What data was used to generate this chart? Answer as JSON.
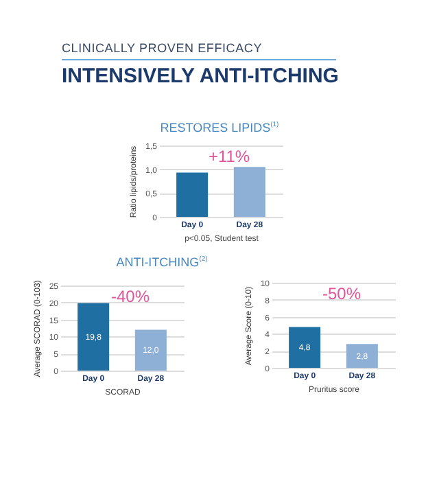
{
  "chart_data": [
    {
      "type": "other",
      "title": "INTENSIVELY ANTI-ITCHING",
      "subtitle": "CLINICALLY PROVEN EFFICACY"
    },
    {
      "type": "bar",
      "title": "RESTORES LIPIDS$^{(1)}$",
      "categories": [
        "Day 0",
        "Day 28"
      ],
      "values": [
        0.93,
        1.05
      ],
      "colors": [
        "#1f6fa3",
        "#8eb0d6"
      ],
      "ylabel": "Ratio lipids/proteins",
      "xlabel": "p<0.05, Student test",
      "ylim": [
        0,
        1.5
      ],
      "yticks": [
        0,
        {
          "value": 0.5,
          "label": "0,5"
        },
        {
          "value": 1,
          "label": "1,0"
        },
        {
          "value": 1.5,
          "label": "1,5"
        }
      ],
      "grid": "y",
      "annotations": [
        "+11%"
      ]
    },
    {
      "type": "bar",
      "title": "ANTI-ITCHING$^{(2)}$",
      "categories": [
        "Day 0",
        "Day 28"
      ],
      "values": [
        19.8,
        12.0
      ],
      "colors": [
        "#1f6fa3",
        "#8eb0d6"
      ],
      "value_labels": [
        "19,8",
        "12,0"
      ],
      "ylabel": "Average SCORAD (0-103)",
      "xlabel": "SCORAD",
      "ylim": [
        0,
        25
      ],
      "yticks": [
        0,
        5,
        10,
        15,
        20,
        25
      ],
      "grid": "y",
      "annotations": [
        "-40%"
      ]
    },
    {
      "type": "bar",
      "categories": [
        "Day 0",
        "Day 28"
      ],
      "values": [
        4.8,
        2.8
      ],
      "colors": [
        "#1f6fa3",
        "#8eb0d6"
      ],
      "value_labels": [
        "4,8",
        "2,8"
      ],
      "ylabel": "Average Score (0-10)",
      "xlabel": "Pruritus score",
      "ylim": [
        0,
        10
      ],
      "yticks": [
        0,
        2,
        4,
        6,
        8,
        10
      ],
      "grid": "y",
      "annotations": [
        "-50%"
      ]
    }
  ]
}
